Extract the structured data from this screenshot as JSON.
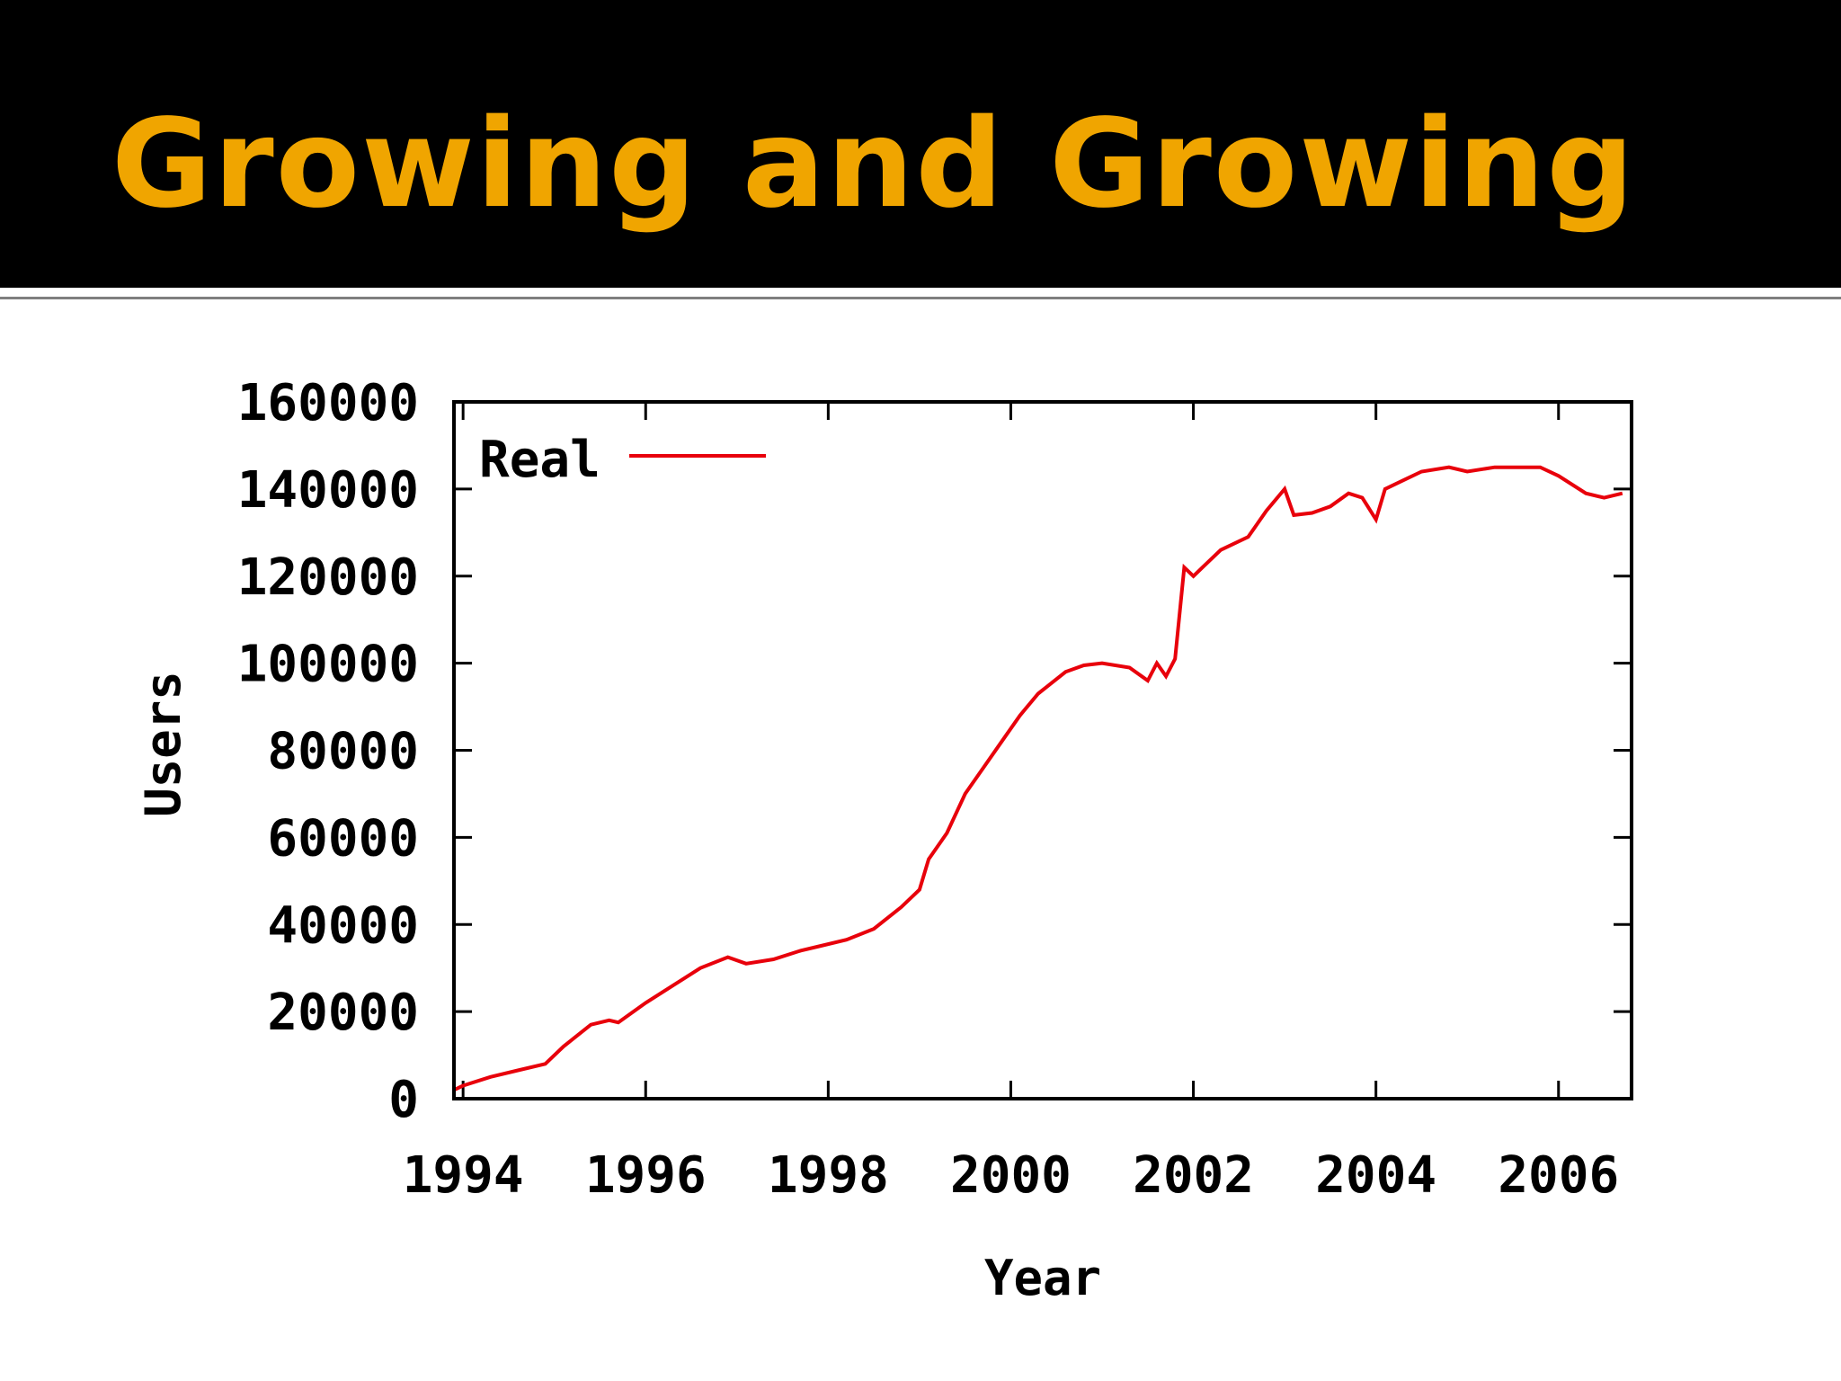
{
  "slide": {
    "title": "Growing and Growing"
  },
  "chart_data": {
    "type": "line",
    "title": "",
    "xlabel": "Year",
    "ylabel": "Users",
    "xlim": [
      1993.9,
      2006.8
    ],
    "ylim": [
      0,
      160000
    ],
    "x_ticks": [
      1994,
      1996,
      1998,
      2000,
      2002,
      2004,
      2006
    ],
    "y_ticks": [
      0,
      20000,
      40000,
      60000,
      80000,
      100000,
      120000,
      140000,
      160000
    ],
    "legend": {
      "position": "top-left"
    },
    "grid": false,
    "series": [
      {
        "name": "Real",
        "color": "#e8000b",
        "x": [
          1993.9,
          1994.0,
          1994.3,
          1994.6,
          1994.9,
          1995.1,
          1995.4,
          1995.6,
          1995.7,
          1995.8,
          1996.0,
          1996.3,
          1996.6,
          1996.9,
          1997.1,
          1997.4,
          1997.7,
          1997.9,
          1998.2,
          1998.5,
          1998.8,
          1999.0,
          1999.1,
          1999.3,
          1999.5,
          1999.7,
          1999.9,
          2000.1,
          2000.3,
          2000.6,
          2000.8,
          2001.0,
          2001.3,
          2001.5,
          2001.6,
          2001.7,
          2001.8,
          2001.9,
          2002.0,
          2002.1,
          2002.3,
          2002.6,
          2002.8,
          2003.0,
          2003.1,
          2003.3,
          2003.5,
          2003.7,
          2003.85,
          2004.0,
          2004.1,
          2004.3,
          2004.5,
          2004.8,
          2005.0,
          2005.3,
          2005.6,
          2005.8,
          2006.0,
          2006.3,
          2006.5,
          2006.7
        ],
        "values": [
          2000,
          3000,
          5000,
          6500,
          8000,
          12000,
          17000,
          18000,
          17500,
          19000,
          22000,
          26000,
          30000,
          32500,
          31000,
          32000,
          34000,
          35000,
          36500,
          39000,
          44000,
          48000,
          55000,
          61000,
          70000,
          76000,
          82000,
          88000,
          93000,
          98000,
          99500,
          100000,
          99000,
          96000,
          100000,
          97000,
          101000,
          122000,
          120000,
          122000,
          126000,
          129000,
          135000,
          140000,
          134000,
          134500,
          136000,
          139000,
          138000,
          133000,
          140000,
          142000,
          144000,
          145000,
          144000,
          145000,
          145000,
          145000,
          143000,
          139000,
          138000,
          139000
        ]
      }
    ]
  }
}
